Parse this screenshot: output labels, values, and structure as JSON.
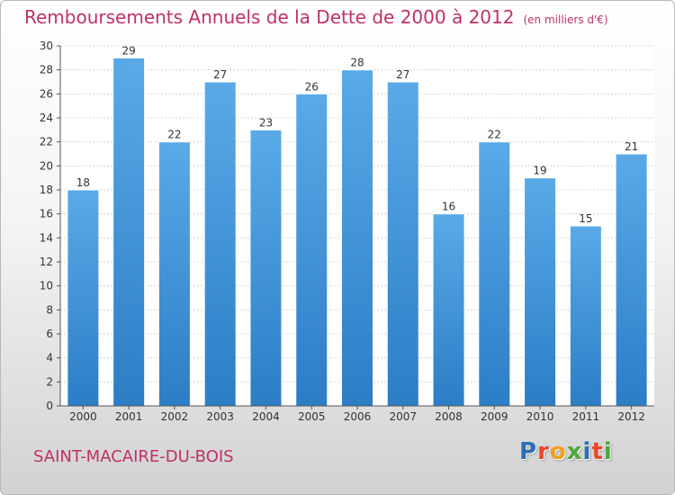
{
  "header": {
    "title": "Remboursements Annuels de la Dette de 2000 à 2012",
    "unit": "(en milliers d'€)"
  },
  "footer": {
    "commune": "SAINT-MACAIRE-DU-BOIS",
    "logo_text": "Proxiti",
    "logo_colors": [
      "#2a6fb5",
      "#e8472a",
      "#f0a020",
      "#4aa83a",
      "#2a6fb5",
      "#e8472a",
      "#4aa83a"
    ]
  },
  "chart_data": {
    "type": "bar",
    "categories": [
      "2000",
      "2001",
      "2002",
      "2003",
      "2004",
      "2005",
      "2006",
      "2007",
      "2008",
      "2009",
      "2010",
      "2011",
      "2012"
    ],
    "values": [
      18,
      29,
      22,
      27,
      23,
      26,
      28,
      27,
      16,
      22,
      19,
      15,
      21
    ],
    "title": "Remboursements Annuels de la Dette de 2000 à 2012",
    "xlabel": "",
    "ylabel": "",
    "ylim": [
      0,
      30
    ],
    "yticks": [
      0,
      2,
      4,
      6,
      8,
      10,
      12,
      14,
      16,
      18,
      20,
      22,
      24,
      26,
      28,
      30
    ],
    "grid": true,
    "bar_color": "#3d8fd6",
    "title_color": "#c0306a"
  }
}
